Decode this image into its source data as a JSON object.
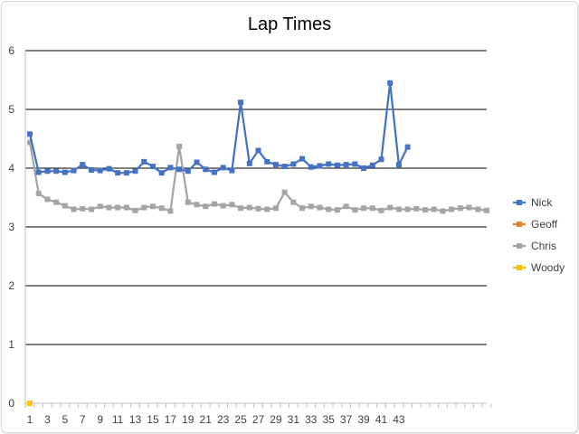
{
  "chart_data": {
    "type": "line",
    "title": "Lap Times",
    "xlabel": "",
    "ylabel": "",
    "ylim": [
      0,
      6
    ],
    "yticks": [
      0,
      1,
      2,
      3,
      4,
      5,
      6
    ],
    "x_range": [
      1,
      53
    ],
    "x_tick_labels": [
      1,
      3,
      5,
      7,
      9,
      11,
      13,
      15,
      17,
      19,
      21,
      23,
      25,
      27,
      29,
      31,
      33,
      35,
      37,
      39,
      41,
      43
    ],
    "grid": "horizontal",
    "legend_position": "right",
    "series": [
      {
        "name": "Nick",
        "color": "#4472C4",
        "x": [
          1,
          2,
          3,
          4,
          5,
          6,
          7,
          8,
          9,
          10,
          11,
          12,
          13,
          14,
          15,
          16,
          17,
          18,
          19,
          20,
          21,
          22,
          23,
          24,
          25,
          26,
          27,
          28,
          29,
          30,
          31,
          32,
          33,
          34,
          35,
          36,
          37,
          38,
          39,
          40,
          41,
          42,
          43,
          44
        ],
        "values": [
          4.58,
          3.93,
          3.95,
          3.95,
          3.93,
          3.96,
          4.06,
          3.97,
          3.96,
          3.99,
          3.92,
          3.92,
          3.95,
          4.11,
          4.03,
          3.92,
          4.01,
          3.98,
          3.95,
          4.1,
          3.98,
          3.93,
          4.01,
          3.96,
          5.12,
          4.08,
          4.3,
          4.11,
          4.06,
          4.03,
          4.07,
          4.16,
          4.02,
          4.04,
          4.07,
          4.05,
          4.06,
          4.07,
          4.0,
          4.05,
          4.15,
          5.45,
          4.06,
          4.36
        ]
      },
      {
        "name": "Geoff",
        "color": "#ED7D31",
        "x": [
          1
        ],
        "values": [
          0
        ]
      },
      {
        "name": "Chris",
        "color": "#A5A5A5",
        "x": [
          1,
          2,
          3,
          4,
          5,
          6,
          7,
          8,
          9,
          10,
          11,
          12,
          13,
          14,
          15,
          16,
          17,
          18,
          19,
          20,
          21,
          22,
          23,
          24,
          25,
          26,
          27,
          28,
          29,
          30,
          31,
          32,
          33,
          34,
          35,
          36,
          37,
          38,
          39,
          40,
          41,
          42,
          43,
          44,
          45,
          46,
          47,
          48,
          49,
          50,
          51,
          52,
          53
        ],
        "values": [
          4.44,
          3.57,
          3.47,
          3.42,
          3.36,
          3.3,
          3.31,
          3.3,
          3.35,
          3.33,
          3.33,
          3.33,
          3.28,
          3.33,
          3.35,
          3.32,
          3.27,
          4.37,
          3.42,
          3.38,
          3.35,
          3.39,
          3.36,
          3.38,
          3.32,
          3.33,
          3.31,
          3.3,
          3.32,
          3.59,
          3.42,
          3.32,
          3.35,
          3.33,
          3.3,
          3.29,
          3.35,
          3.29,
          3.32,
          3.32,
          3.28,
          3.33,
          3.3,
          3.3,
          3.31,
          3.29,
          3.3,
          3.27,
          3.3,
          3.32,
          3.33,
          3.3,
          3.28
        ]
      },
      {
        "name": "Woody",
        "color": "#FFC000",
        "x": [
          1
        ],
        "values": [
          0
        ]
      }
    ]
  }
}
